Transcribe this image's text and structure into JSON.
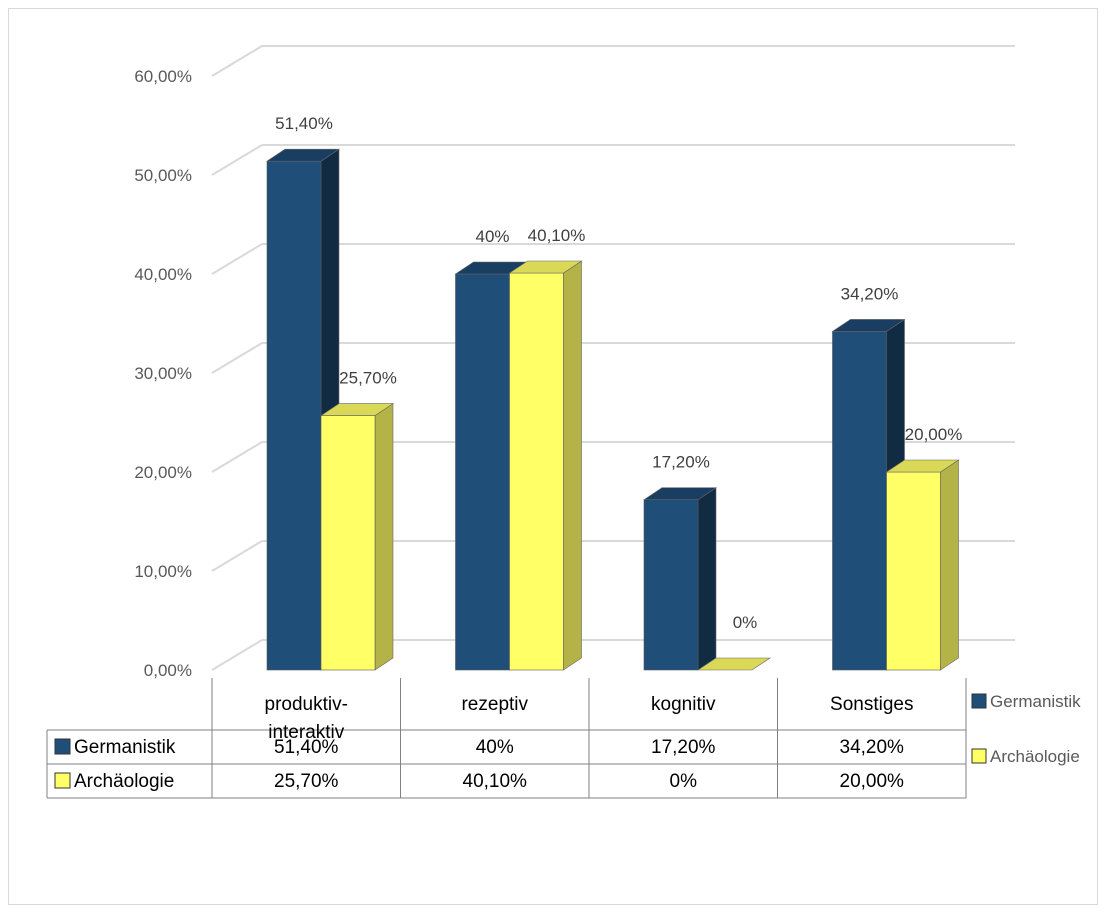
{
  "chart_data": {
    "type": "bar",
    "style": "3d-clustered-column-with-data-table",
    "categories": [
      "produktiv-interaktiv",
      "rezeptiv",
      "kognitiv",
      "Sonstiges"
    ],
    "category_lines": [
      [
        "produktiv-",
        "interaktiv"
      ],
      [
        "rezeptiv"
      ],
      [
        "kognitiv"
      ],
      [
        "Sonstiges"
      ]
    ],
    "series": [
      {
        "name": "Germanistik",
        "color": "#1f4e79",
        "values": [
          51.4,
          40,
          17.2,
          34.2
        ],
        "labels": [
          "51,40%",
          "40%",
          "17,20%",
          "34,20%"
        ]
      },
      {
        "name": "Archäologie",
        "color": "#ffff66",
        "values": [
          25.7,
          40.1,
          0,
          20.0
        ],
        "labels": [
          "25,70%",
          "40,10%",
          "0%",
          "20,00%"
        ]
      }
    ],
    "ylim": [
      0,
      60
    ],
    "yticks": [
      "0,00%",
      "10,00%",
      "20,00%",
      "30,00%",
      "40,00%",
      "50,00%",
      "60,00%"
    ],
    "grid": true,
    "legend_position": "right"
  }
}
